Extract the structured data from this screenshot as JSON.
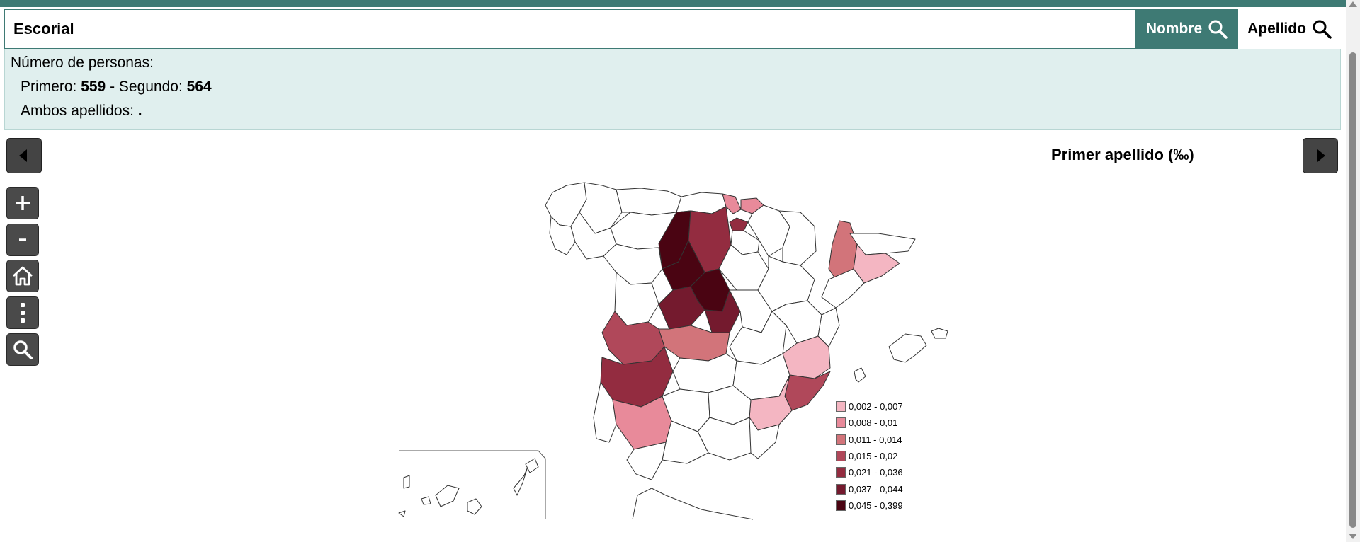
{
  "search": {
    "value": "Escorial",
    "nombre_label": "Nombre",
    "apellido_label": "Apellido"
  },
  "info": {
    "heading": "Número de personas:",
    "primero_label": "Primero: ",
    "primero_value": "559",
    "separator": " - Segundo: ",
    "segundo_value": "564",
    "ambos_label": "Ambos apellidos: ",
    "ambos_value": "."
  },
  "map": {
    "title": "Primer apellido (‰)",
    "legend": [
      {
        "label": "0,002 - 0,007",
        "color": "#f4b6c2"
      },
      {
        "label": "0,008 - 0,01",
        "color": "#e88a9a"
      },
      {
        "label": "0,011 - 0,014",
        "color": "#d2747a"
      },
      {
        "label": "0,015 - 0,02",
        "color": "#b0485a"
      },
      {
        "label": "0,021 - 0,036",
        "color": "#932c40"
      },
      {
        "label": "0,037 - 0,044",
        "color": "#741a2e"
      },
      {
        "label": "0,045 - 0,399",
        "color": "#4a0412"
      }
    ]
  },
  "icons": {
    "prev": "caret-left-icon",
    "next": "caret-right-icon",
    "zoom_in": "plus-icon",
    "zoom_out": "minus-icon",
    "home": "home-icon",
    "more": "vertical-dots-icon",
    "search": "search-icon"
  },
  "colors": {
    "accent": "#3e7a74",
    "info_bg": "#e0efee",
    "button_dark": "#4a4a4a"
  }
}
